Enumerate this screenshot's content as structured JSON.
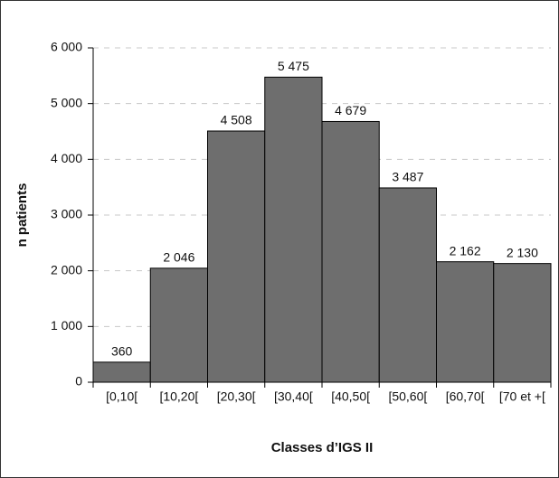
{
  "chart_data": {
    "type": "bar",
    "categories": [
      "[0,10[",
      "[10,20[",
      "[20,30[",
      "[30,40[",
      "[40,50[",
      "[50,60[",
      "[60,70[",
      "[70 et +["
    ],
    "values": [
      360,
      2046,
      4508,
      5475,
      4679,
      3487,
      2162,
      2130
    ],
    "value_labels": [
      "360",
      "2 046",
      "4 508",
      "5 475",
      "4 679",
      "3 487",
      "2 162",
      "2 130"
    ],
    "color": "#6e6e6e",
    "ylim": [
      0,
      6000
    ],
    "yticks": [
      0,
      {
        "value": 1000,
        "label": "1 000"
      },
      {
        "value": 2000,
        "label": "2 000"
      },
      {
        "value": 3000,
        "label": "3 000"
      },
      {
        "value": 4000,
        "label": "4 000"
      },
      {
        "value": 5000,
        "label": "5 000"
      },
      {
        "value": 6000,
        "label": "6 000"
      }
    ],
    "grid": true,
    "xlabel": "Classes d’IGS II",
    "ylabel": "n patients"
  }
}
